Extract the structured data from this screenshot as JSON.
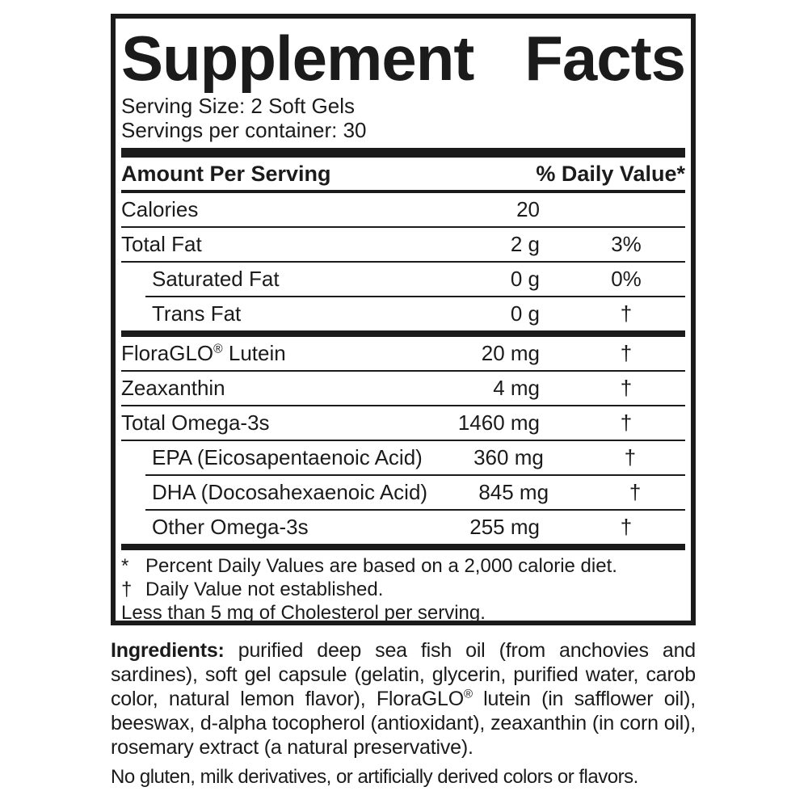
{
  "colors": {
    "ink": "#1b1b1b",
    "background": "#ffffff"
  },
  "supplement_facts": {
    "title": {
      "word1": "Supplement",
      "word2": "Facts"
    },
    "serving_size": "Serving Size: 2 Soft Gels",
    "servings_per_container": "Servings per container: 30",
    "columns": {
      "amount_header": "Amount Per Serving",
      "daily_value_header": "% Daily Value*"
    },
    "rows": [
      {
        "name": "Calories",
        "amount": "20",
        "daily_value": ""
      },
      {
        "name": "Total Fat",
        "amount": "2 g",
        "daily_value": "3%"
      },
      {
        "name": "Saturated Fat",
        "amount": "0 g",
        "daily_value": "0%"
      },
      {
        "name": "Trans Fat",
        "amount": "0 g",
        "daily_value": "†"
      },
      {
        "name_prefix": "FloraGLO",
        "registered_mark": "®",
        "name_suffix": " Lutein",
        "amount": "20 mg",
        "daily_value": "†"
      },
      {
        "name": "Zeaxanthin",
        "amount": "4 mg",
        "daily_value": "†"
      },
      {
        "name": "Total Omega-3s",
        "amount": "1460 mg",
        "daily_value": "†"
      },
      {
        "name": "EPA (Eicosapentaenoic Acid)",
        "amount": "360 mg",
        "daily_value": "†"
      },
      {
        "name": "DHA (Docosahexaenoic Acid)",
        "amount": "845 mg",
        "daily_value": "†"
      },
      {
        "name": "Other Omega-3s",
        "amount": "255 mg",
        "daily_value": "†"
      }
    ],
    "footnotes": [
      {
        "symbol": "*",
        "text": "Percent Daily Values are based on a 2,000 calorie diet."
      },
      {
        "symbol": "†",
        "text": "Daily Value not established."
      }
    ],
    "cholesterol_note": "Less than 5 mg of Cholesterol per serving."
  },
  "ingredients": {
    "label": "Ingredients:",
    "text_before_reg": "purified deep sea fish oil (from anchovies and sardines), soft gel capsule (gelatin, glycerin, purified water, carob color, natural lemon flavor), FloraGLO",
    "registered_mark": "®",
    "text_after_reg": " lutein (in safflower oil), beeswax, d-alpha tocopherol (antioxidant), zeaxanthin (in corn oil), rosemary extract (a natural preservative).",
    "allergen_note": "No gluten, milk derivatives, or artificially derived colors or flavors."
  }
}
